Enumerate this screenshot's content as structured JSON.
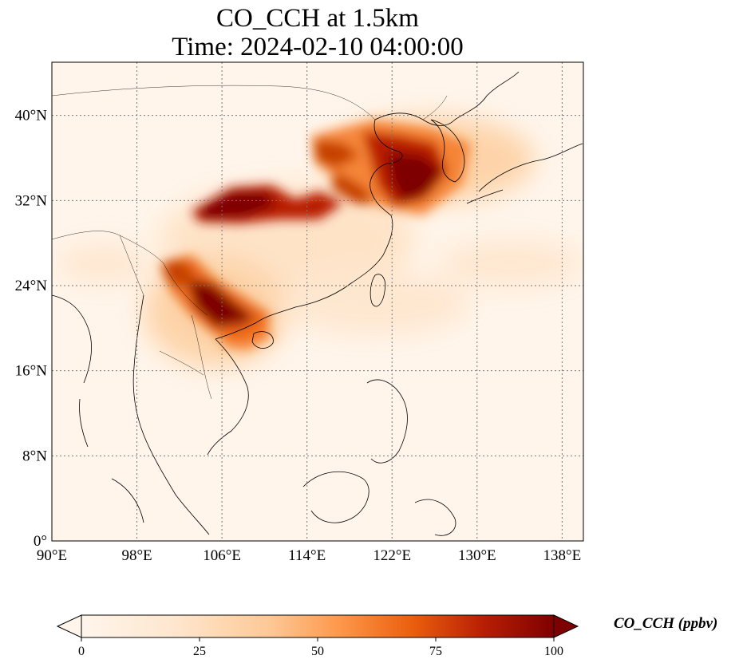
{
  "title": {
    "line1": "CO_CCH at 1.5km",
    "line2": "Time: 2024-02-10 04:00:00"
  },
  "map": {
    "lon_range": [
      90,
      140
    ],
    "lat_range": [
      0,
      45
    ],
    "lon_ticks": [
      {
        "value": 90,
        "label": "90°E"
      },
      {
        "value": 98,
        "label": "98°E"
      },
      {
        "value": 106,
        "label": "106°E"
      },
      {
        "value": 114,
        "label": "114°E"
      },
      {
        "value": 122,
        "label": "122°E"
      },
      {
        "value": 130,
        "label": "130°E"
      },
      {
        "value": 138,
        "label": "138°E"
      }
    ],
    "lat_ticks": [
      {
        "value": 0,
        "label": "0°"
      },
      {
        "value": 8,
        "label": "8°N"
      },
      {
        "value": 16,
        "label": "16°N"
      },
      {
        "value": 24,
        "label": "24°N"
      },
      {
        "value": 32,
        "label": "32°N"
      },
      {
        "value": 40,
        "label": "40°N"
      }
    ],
    "gridlines": true,
    "background_color": "#fff5eb",
    "plume_regions": [
      {
        "name": "north-china-korea",
        "lon": 122,
        "lat": 35.5,
        "level": 95
      },
      {
        "name": "central-china-band",
        "lon": 108,
        "lat": 31,
        "level": 100
      },
      {
        "name": "south-china-vietnam",
        "lon": 105.5,
        "lat": 21,
        "level": 100
      },
      {
        "name": "yunnan-myanmar",
        "lon": 102,
        "lat": 24,
        "level": 80
      }
    ]
  },
  "colorbar": {
    "vmin": 0,
    "vmax": 100,
    "ticks": [
      {
        "value": 0,
        "label": "0"
      },
      {
        "value": 25,
        "label": "25"
      },
      {
        "value": 50,
        "label": "50"
      },
      {
        "value": 75,
        "label": "75"
      },
      {
        "value": 100,
        "label": "100"
      }
    ],
    "label": "CO_CCH (ppbv)",
    "colormap": [
      "#fff5eb",
      "#fdd9b4",
      "#fda762",
      "#f3701b",
      "#c54102",
      "#7f2704"
    ],
    "extend": "both"
  }
}
